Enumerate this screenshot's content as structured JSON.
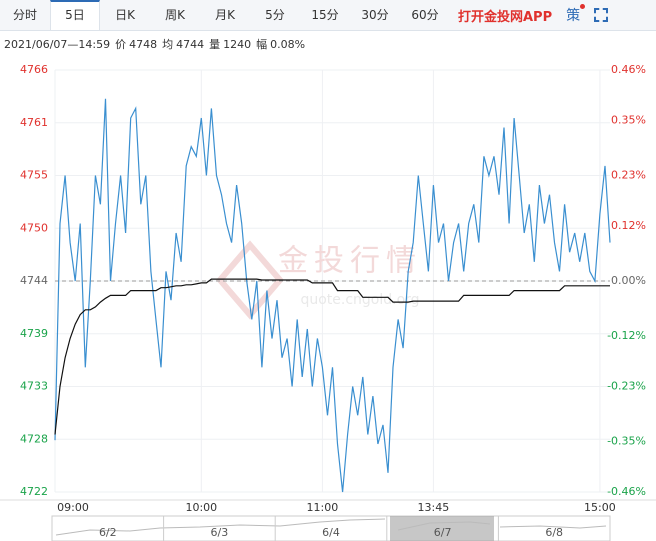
{
  "tabs": [
    "分时",
    "5日",
    "日K",
    "周K",
    "月K",
    "5分",
    "15分",
    "30分",
    "60分"
  ],
  "active_tab": 1,
  "app_link": "打开金投网APP",
  "strategy": "策",
  "info": {
    "time": "2021/06/07—14:59",
    "items": [
      {
        "label": "价",
        "value": 4748
      },
      {
        "label": "均",
        "value": 4744
      },
      {
        "label": "量",
        "value": 1240
      },
      {
        "label": "幅",
        "value": "0.08%"
      }
    ]
  },
  "watermark": {
    "title": "金投行情",
    "url": "quote.cngold.org"
  },
  "chart_data": {
    "type": "line",
    "xlim": [
      0,
      110
    ],
    "xticks": [
      {
        "value": 0,
        "label": "09:00"
      },
      {
        "value": 29,
        "label": "10:00"
      },
      {
        "value": 53,
        "label": "11:00"
      },
      {
        "value": 75,
        "label": "13:45"
      },
      {
        "value": 108,
        "label": "15:00"
      }
    ],
    "ylim": [
      4722,
      4766
    ],
    "yticks": [
      4722,
      {
        "value": 4727.5,
        "label": "4728"
      },
      4733,
      {
        "value": 4738.5,
        "label": "4739"
      },
      4744,
      {
        "value": 4749.5,
        "label": "4750"
      },
      4755,
      {
        "value": 4760.5,
        "label": "4761"
      },
      4766
    ],
    "y2lim": [
      -0.46,
      0.46
    ],
    "y2ticks": [
      {
        "value": -0.46,
        "label": "-0.46%"
      },
      {
        "value": -0.35,
        "label": "-0.35%"
      },
      {
        "value": -0.23,
        "label": "-0.23%"
      },
      {
        "value": -0.12,
        "label": "-0.12%"
      },
      {
        "value": 0,
        "label": "0.00%"
      },
      {
        "value": 0.12,
        "label": "0.12%"
      },
      {
        "value": 0.23,
        "label": "0.23%"
      },
      {
        "value": 0.35,
        "label": "0.35%"
      },
      {
        "value": 0.46,
        "label": "0.46%"
      }
    ],
    "grid": true,
    "series": [
      {
        "color": "#3a8fd0",
        "values": [
          4727.4,
          4750,
          4755,
          4748,
          4744,
          4750,
          4735,
          4744,
          4755,
          4752,
          4763,
          4744,
          4750,
          4755,
          4749,
          4761,
          4762,
          4752,
          4755,
          4745,
          4740,
          4735,
          4745,
          4742,
          4749,
          4746,
          4756,
          4758,
          4757,
          4761,
          4755,
          4762,
          4755,
          4753,
          4750,
          4748,
          4754,
          4750,
          4744,
          4740,
          4744,
          4735,
          4743,
          4738,
          4742,
          4736,
          4738,
          4733,
          4740,
          4734,
          4739,
          4733,
          4738,
          4735,
          4730,
          4735,
          4727,
          4722,
          4728,
          4733,
          4730,
          4734,
          4728,
          4732,
          4727,
          4729,
          4724,
          4735,
          4740,
          4737,
          4745,
          4748,
          4755,
          4750,
          4745,
          4754,
          4748,
          4750,
          4744,
          4748,
          4750,
          4745,
          4750,
          4752,
          4748,
          4757,
          4755,
          4757,
          4753,
          4760,
          4750,
          4761,
          4755,
          4749,
          4752,
          4746,
          4754,
          4750,
          4753,
          4748,
          4745,
          4752,
          4747,
          4749,
          4746,
          4749,
          4745,
          4744,
          4751,
          4756,
          4748
        ]
      },
      {
        "color": "#111111",
        "values": [
          4728,
          4733,
          4736,
          4738,
          4739.5,
          4740.5,
          4741,
          4741,
          4741.3,
          4741.8,
          4742.2,
          4742.5,
          4742.5,
          4742.5,
          4742.5,
          4743,
          4743,
          4743,
          4743,
          4743,
          4743,
          4743.3,
          4743.3,
          4743.4,
          4743.5,
          4743.5,
          4743.6,
          4743.6,
          4743.7,
          4743.8,
          4743.8,
          4744.2,
          4744.2,
          4744.2,
          4744.2,
          4744.2,
          4744.2,
          4744.2,
          4744.2,
          4744.2,
          4744.2,
          4744.1,
          4744.1,
          4744.1,
          4744.1,
          4744.1,
          4744.1,
          4744.1,
          4744.1,
          4744.1,
          4744.1,
          4743.8,
          4743.8,
          4743.8,
          4743.8,
          4743.8,
          4743,
          4743,
          4743,
          4743,
          4743,
          4742.3,
          4742.3,
          4742.3,
          4742.3,
          4742.3,
          4742.3,
          4741.8,
          4741.8,
          4741.8,
          4741.8,
          4741.9,
          4741.9,
          4741.9,
          4741.9,
          4741.9,
          4741.9,
          4741.9,
          4741.9,
          4741.9,
          4741.9,
          4742.5,
          4742.5,
          4742.5,
          4742.5,
          4742.5,
          4742.5,
          4742.5,
          4742.5,
          4742.5,
          4742.5,
          4743,
          4743,
          4743,
          4743,
          4743,
          4743,
          4743,
          4743,
          4743,
          4743,
          4743.5,
          4743.5,
          4743.5,
          4743.5,
          4743.5,
          4743.5,
          4743.5,
          4743.5,
          4743.5,
          4743.5
        ]
      }
    ],
    "nav_labels": [
      "6/2",
      "6/3",
      "6/4",
      "6/7",
      "6/8"
    ]
  }
}
